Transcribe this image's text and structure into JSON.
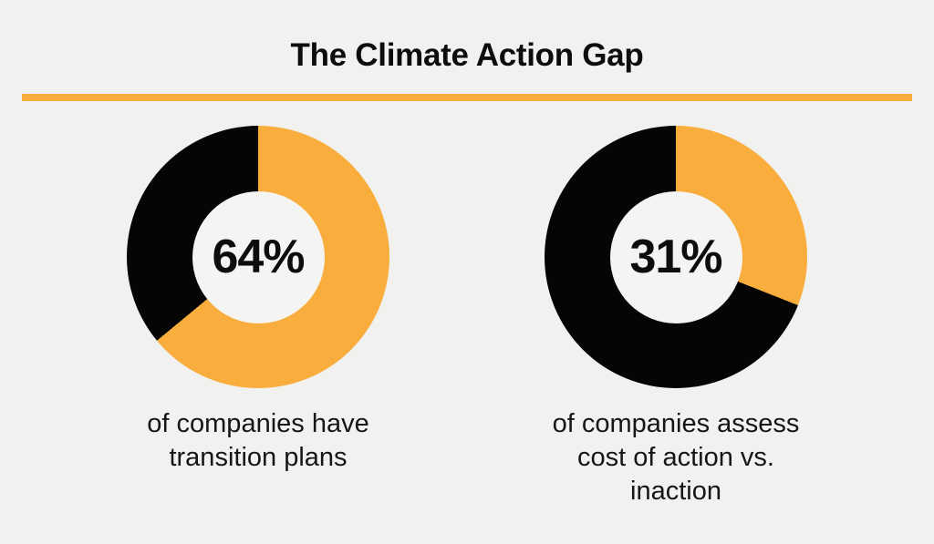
{
  "title": "The Climate Action Gap",
  "theme": {
    "background": "#F1F1F0",
    "accent_orange": "#F9AD3C",
    "ink_black": "#050505",
    "hole_color": "#F4F4F3"
  },
  "divider": {
    "color": "#F9AD3C"
  },
  "charts": [
    {
      "value_label": "64%",
      "caption_lines": [
        "of companies have",
        "transition plans"
      ]
    },
    {
      "value_label": "31%",
      "caption_lines": [
        "of companies assess",
        "cost of action vs.",
        "inaction"
      ]
    }
  ],
  "chart_data": [
    {
      "type": "pie",
      "subtype": "donut",
      "center_label": "64%",
      "caption": "of companies have transition plans",
      "start_angle_deg": 0,
      "direction": "clockwise",
      "hole_ratio": 0.5,
      "slices": [
        {
          "name": "highlighted",
          "value": 64,
          "color": "#F9AD3C"
        },
        {
          "name": "remainder",
          "value": 36,
          "color": "#050505"
        }
      ]
    },
    {
      "type": "pie",
      "subtype": "donut",
      "center_label": "31%",
      "caption": "of companies assess cost of action vs. inaction",
      "start_angle_deg": 0,
      "direction": "clockwise",
      "hole_ratio": 0.5,
      "slices": [
        {
          "name": "highlighted",
          "value": 31,
          "color": "#F9AD3C"
        },
        {
          "name": "remainder",
          "value": 69,
          "color": "#050505"
        }
      ]
    }
  ]
}
